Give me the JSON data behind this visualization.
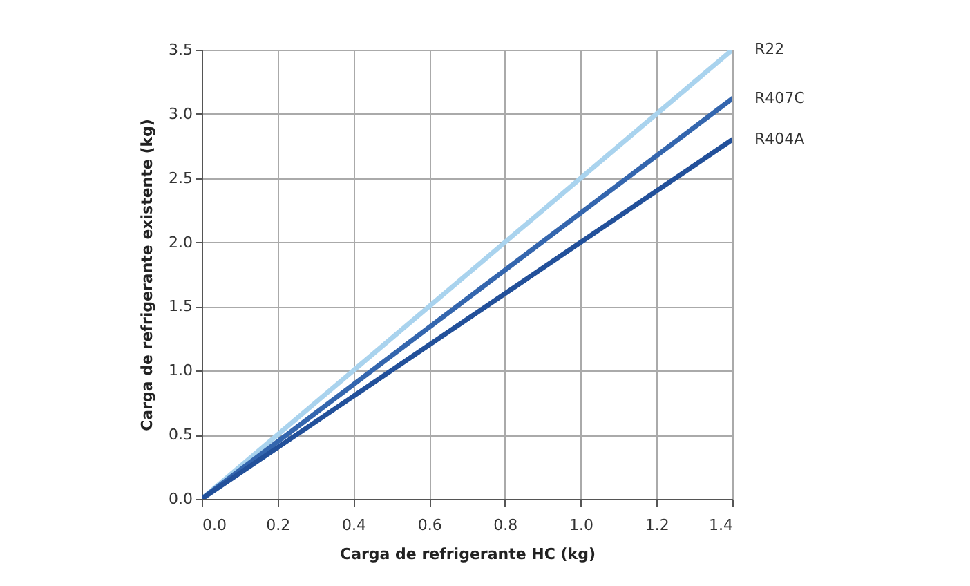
{
  "chart_data": {
    "type": "line",
    "xlabel": "Carga de refrigerante HC (kg)",
    "ylabel": "Carga de refrigerante existente (kg)",
    "x": [
      0,
      1.4
    ],
    "series": [
      {
        "name": "R22",
        "color": "#a9d3ee",
        "values": [
          0,
          3.5
        ]
      },
      {
        "name": "R407C",
        "color": "#3466ae",
        "values": [
          0,
          3.12
        ]
      },
      {
        "name": "R404A",
        "color": "#22509a",
        "values": [
          0,
          2.8
        ]
      }
    ],
    "xlim": [
      0,
      1.4
    ],
    "xticks": [
      {
        "value": 0,
        "label": "0.0"
      },
      0.2,
      0.4,
      0.6,
      0.8,
      {
        "value": 1,
        "label": "1.0"
      },
      1.2,
      1.4
    ],
    "ylim": [
      0,
      3.5
    ],
    "yticks": [
      {
        "value": 0,
        "label": "0.0"
      },
      0.5,
      {
        "value": 1,
        "label": "1.0"
      },
      1.5,
      {
        "value": 2,
        "label": "2.0"
      },
      2.5,
      {
        "value": 3,
        "label": "3.0"
      },
      3.5
    ],
    "grid": true,
    "marker": "none",
    "line_style": "solid"
  }
}
